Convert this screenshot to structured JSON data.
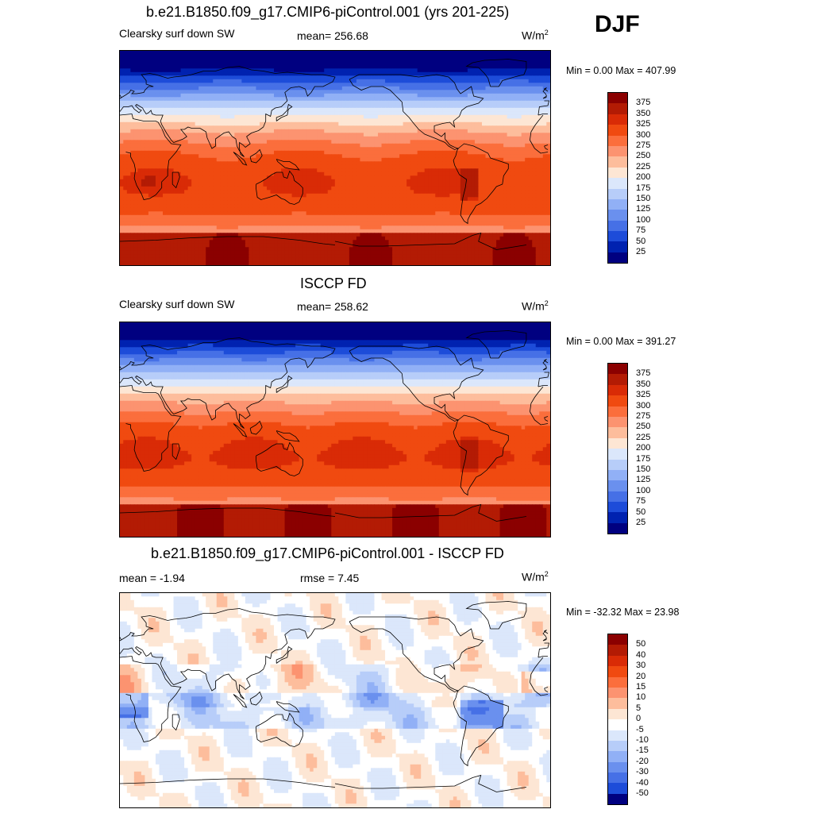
{
  "season": "DJF",
  "panels": [
    {
      "title": "b.e21.B1850.f09_g17.CMIP6-piControl.001 (yrs 201-225)",
      "left_label": "Clearsky surf down SW",
      "center_label": "mean= 256.68",
      "units": "W/m",
      "units_exp": "2",
      "minmax": "Min =   0.00 Max = 407.99",
      "field": "model",
      "colorbar": {
        "labels": [
          "375",
          "350",
          "325",
          "300",
          "275",
          "250",
          "225",
          "200",
          "175",
          "150",
          "125",
          "100",
          "75",
          "50",
          "25"
        ],
        "colors": [
          "#8b0000",
          "#b31b04",
          "#d92b06",
          "#f04a10",
          "#fb6e3c",
          "#fc9370",
          "#fdbd9c",
          "#fde6d4",
          "#dbe7fb",
          "#b7cdf9",
          "#91b0f6",
          "#6a90ee",
          "#4670e6",
          "#1d4cd9",
          "#0022b0",
          "#000080"
        ]
      }
    },
    {
      "title": "ISCCP FD",
      "left_label": "Clearsky surf down SW",
      "center_label": "mean= 258.62",
      "units": "W/m",
      "units_exp": "2",
      "minmax": "Min =   0.00 Max = 391.27",
      "field": "obs",
      "colorbar": {
        "labels": [
          "375",
          "350",
          "325",
          "300",
          "275",
          "250",
          "225",
          "200",
          "175",
          "150",
          "125",
          "100",
          "75",
          "50",
          "25"
        ],
        "colors": [
          "#8b0000",
          "#b31b04",
          "#d92b06",
          "#f04a10",
          "#fb6e3c",
          "#fc9370",
          "#fdbd9c",
          "#fde6d4",
          "#dbe7fb",
          "#b7cdf9",
          "#91b0f6",
          "#6a90ee",
          "#4670e6",
          "#1d4cd9",
          "#0022b0",
          "#000080"
        ]
      }
    },
    {
      "title": "b.e21.B1850.f09_g17.CMIP6-piControl.001 - ISCCP FD",
      "left_label": "mean =  -1.94",
      "center_label": "rmse =   7.45",
      "units": "W/m",
      "units_exp": "2",
      "minmax": "Min = -32.32 Max =  23.98",
      "field": "diff",
      "colorbar": {
        "labels": [
          "50",
          "40",
          "30",
          "20",
          "15",
          "10",
          "5",
          "0",
          "-5",
          "-10",
          "-15",
          "-20",
          "-30",
          "-40",
          "-50"
        ],
        "colors": [
          "#8b0000",
          "#b31b04",
          "#d92b06",
          "#f04a10",
          "#fb6e3c",
          "#fc9370",
          "#fdbd9c",
          "#fde6d4",
          "#ffffff",
          "#dbe7fb",
          "#b7cdf9",
          "#91b0f6",
          "#6a90ee",
          "#4670e6",
          "#1d4cd9",
          "#000080"
        ]
      }
    }
  ]
}
